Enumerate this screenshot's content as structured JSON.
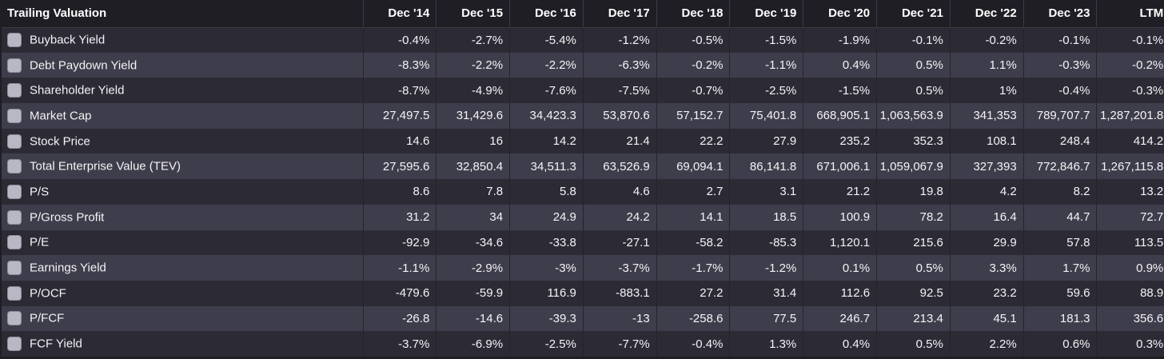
{
  "table": {
    "title": "Trailing Valuation",
    "columns": [
      "Dec '14",
      "Dec '15",
      "Dec '16",
      "Dec '17",
      "Dec '18",
      "Dec '19",
      "Dec '20",
      "Dec '21",
      "Dec '22",
      "Dec '23",
      "LTM"
    ],
    "rows": [
      {
        "label": "Buyback Yield",
        "values": [
          "-0.4%",
          "-2.7%",
          "-5.4%",
          "-1.2%",
          "-0.5%",
          "-1.5%",
          "-1.9%",
          "-0.1%",
          "-0.2%",
          "-0.1%",
          "-0.1%"
        ]
      },
      {
        "label": "Debt Paydown Yield",
        "values": [
          "-8.3%",
          "-2.2%",
          "-2.2%",
          "-6.3%",
          "-0.2%",
          "-1.1%",
          "0.4%",
          "0.5%",
          "1.1%",
          "-0.3%",
          "-0.2%"
        ]
      },
      {
        "label": "Shareholder Yield",
        "values": [
          "-8.7%",
          "-4.9%",
          "-7.6%",
          "-7.5%",
          "-0.7%",
          "-2.5%",
          "-1.5%",
          "0.5%",
          "1%",
          "-0.4%",
          "-0.3%"
        ]
      },
      {
        "label": "Market Cap",
        "values": [
          "27,497.5",
          "31,429.6",
          "34,423.3",
          "53,870.6",
          "57,152.7",
          "75,401.8",
          "668,905.1",
          "1,063,563.9",
          "341,353",
          "789,707.7",
          "1,287,201.8"
        ]
      },
      {
        "label": "Stock Price",
        "values": [
          "14.6",
          "16",
          "14.2",
          "21.4",
          "22.2",
          "27.9",
          "235.2",
          "352.3",
          "108.1",
          "248.4",
          "414.2"
        ]
      },
      {
        "label": "Total Enterprise Value (TEV)",
        "values": [
          "27,595.6",
          "32,850.4",
          "34,511.3",
          "63,526.9",
          "69,094.1",
          "86,141.8",
          "671,006.1",
          "1,059,067.9",
          "327,393",
          "772,846.7",
          "1,267,115.8"
        ]
      },
      {
        "label": "P/S",
        "values": [
          "8.6",
          "7.8",
          "5.8",
          "4.6",
          "2.7",
          "3.1",
          "21.2",
          "19.8",
          "4.2",
          "8.2",
          "13.2"
        ]
      },
      {
        "label": "P/Gross Profit",
        "values": [
          "31.2",
          "34",
          "24.9",
          "24.2",
          "14.1",
          "18.5",
          "100.9",
          "78.2",
          "16.4",
          "44.7",
          "72.7"
        ]
      },
      {
        "label": "P/E",
        "values": [
          "-92.9",
          "-34.6",
          "-33.8",
          "-27.1",
          "-58.2",
          "-85.3",
          "1,120.1",
          "215.6",
          "29.9",
          "57.8",
          "113.5"
        ]
      },
      {
        "label": "Earnings Yield",
        "values": [
          "-1.1%",
          "-2.9%",
          "-3%",
          "-3.7%",
          "-1.7%",
          "-1.2%",
          "0.1%",
          "0.5%",
          "3.3%",
          "1.7%",
          "0.9%"
        ]
      },
      {
        "label": "P/OCF",
        "values": [
          "-479.6",
          "-59.9",
          "116.9",
          "-883.1",
          "27.2",
          "31.4",
          "112.6",
          "92.5",
          "23.2",
          "59.6",
          "88.9"
        ]
      },
      {
        "label": "P/FCF",
        "values": [
          "-26.8",
          "-14.6",
          "-39.3",
          "-13",
          "-258.6",
          "77.5",
          "246.7",
          "213.4",
          "45.1",
          "181.3",
          "356.6"
        ]
      },
      {
        "label": "FCF Yield",
        "values": [
          "-3.7%",
          "-6.9%",
          "-2.5%",
          "-7.7%",
          "-0.4%",
          "1.3%",
          "0.4%",
          "0.5%",
          "2.2%",
          "0.6%",
          "0.3%"
        ]
      }
    ]
  },
  "colors": {
    "background": "#1f1e25",
    "row_odd": "#2c2b35",
    "row_even": "#3e3d4b",
    "text": "#f3f3f6",
    "checkbox": "#b8b8c4"
  }
}
